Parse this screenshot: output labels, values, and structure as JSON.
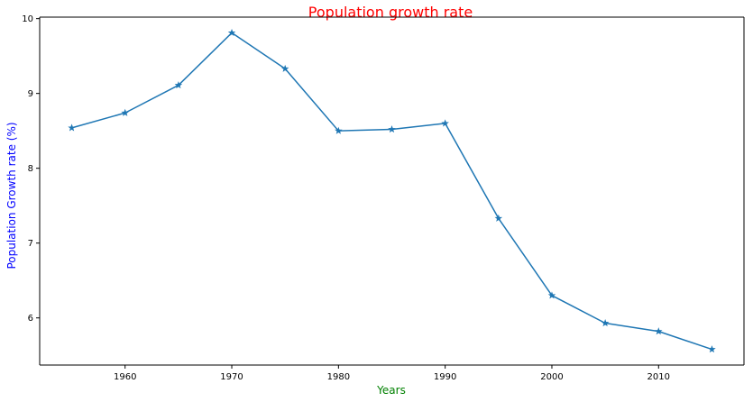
{
  "chart_data": {
    "type": "line",
    "title": "Population growth rate",
    "xlabel": "Years",
    "ylabel": "Population Growth rate (%)",
    "x": [
      1955,
      1960,
      1965,
      1970,
      1975,
      1980,
      1985,
      1990,
      1995,
      2000,
      2005,
      2010,
      2015
    ],
    "series": [
      {
        "values": [
          8.54,
          8.74,
          9.11,
          9.81,
          9.33,
          8.5,
          8.52,
          8.6,
          7.33,
          6.3,
          5.93,
          5.82,
          5.58
        ],
        "marker": "star"
      }
    ],
    "xlim": [
      1951.995,
      2018.005
    ],
    "ylim": [
      5.37,
      10.02
    ],
    "xticks": [
      "1960",
      "1970",
      "1980",
      "1990",
      "2000",
      "2010"
    ],
    "yticks": [
      "6",
      "7",
      "8",
      "9",
      "10"
    ],
    "grid": false,
    "colors": {
      "line": "#1f77b4",
      "title": "#ff0000",
      "xlabel": "#008000",
      "ylabel": "#0000ff"
    }
  }
}
